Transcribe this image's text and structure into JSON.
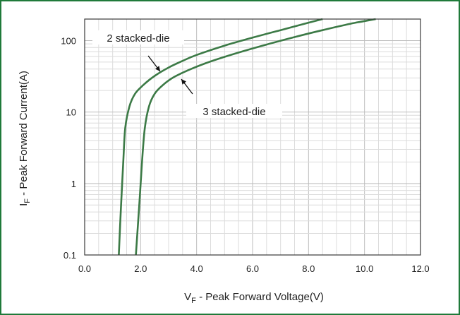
{
  "chart_data": {
    "type": "line",
    "xlabel_main": "V",
    "xlabel_sub": "F",
    "xlabel_rest": " - Peak Forward Voltage(V)",
    "ylabel_main": "I",
    "ylabel_sub": "F",
    "ylabel_rest": " - Peak Forward Current(A)",
    "xlim": [
      0,
      12
    ],
    "ylim": [
      0.1,
      200
    ],
    "yscale": "log",
    "x_ticks": [
      "0.0",
      "2.0",
      "4.0",
      "6.0",
      "8.0",
      "10.0",
      "12.0"
    ],
    "y_ticks": [
      "0.1",
      "1",
      "10",
      "100"
    ],
    "grid": true,
    "series": [
      {
        "name": "2 stacked-die",
        "x": [
          1.22,
          1.3,
          1.38,
          1.45,
          1.6,
          1.8,
          2.1,
          2.5,
          3.0,
          3.5,
          4.0,
          5.0,
          6.0,
          7.0,
          8.0,
          8.5
        ],
        "y": [
          0.1,
          0.5,
          2,
          6,
          12,
          18,
          24,
          32,
          42,
          52,
          63,
          85,
          110,
          140,
          178,
          200
        ]
      },
      {
        "name": "3 stacked-die",
        "x": [
          1.83,
          1.95,
          2.05,
          2.15,
          2.3,
          2.5,
          2.8,
          3.2,
          3.8,
          4.5,
          5.5,
          6.5,
          7.5,
          8.5,
          9.5,
          10.4
        ],
        "y": [
          0.1,
          0.5,
          2,
          6,
          12,
          18,
          24,
          31,
          40,
          51,
          68,
          88,
          112,
          140,
          172,
          200
        ]
      }
    ],
    "annotations": [
      {
        "text": "2 stacked-die"
      },
      {
        "text": "3 stacked-die"
      }
    ],
    "line_color": "#3c7a46",
    "frame_color": "#1f7a3a"
  }
}
